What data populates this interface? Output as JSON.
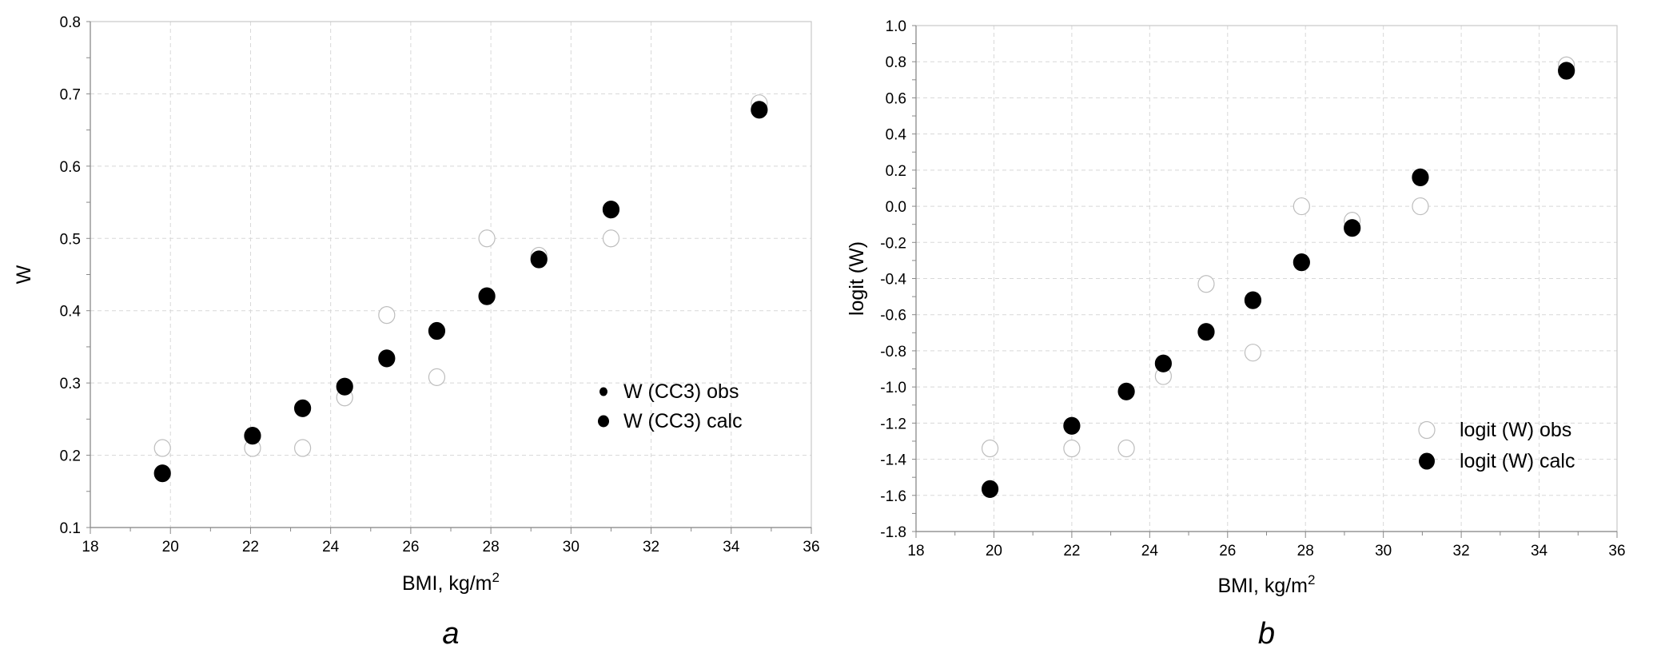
{
  "chart_data": [
    {
      "type": "scatter",
      "panel_label": "a",
      "xlabel": "BMI, kg/m",
      "xlabel_sup": "2",
      "ylabel": "W",
      "xlim": [
        18,
        36
      ],
      "ylim": [
        0.1,
        0.8
      ],
      "xticks": [
        "18",
        "20",
        "22",
        "24",
        "26",
        "28",
        "30",
        "32",
        "34",
        "36"
      ],
      "yticks": [
        "0.1",
        "0.2",
        "0.3",
        "0.4",
        "0.5",
        "0.6",
        "0.7",
        "0.8"
      ],
      "grid": true,
      "legend_position": "right-middle",
      "series": [
        {
          "name": "W (CC3) obs",
          "marker": "open-circle",
          "x": [
            19.8,
            22.05,
            23.3,
            24.35,
            25.4,
            26.65,
            27.9,
            29.2,
            31.0,
            34.7
          ],
          "y": [
            0.21,
            0.21,
            0.21,
            0.28,
            0.394,
            0.308,
            0.5,
            0.476,
            0.5,
            0.687
          ]
        },
        {
          "name": "W (CC3) calc",
          "marker": "filled-circle",
          "x": [
            19.8,
            22.05,
            23.3,
            24.35,
            25.4,
            26.65,
            27.9,
            29.2,
            31.0,
            34.7
          ],
          "y": [
            0.175,
            0.227,
            0.265,
            0.295,
            0.334,
            0.372,
            0.42,
            0.471,
            0.54,
            0.678
          ]
        }
      ]
    },
    {
      "type": "scatter",
      "panel_label": "b",
      "xlabel": "BMI, kg/m",
      "xlabel_sup": "2",
      "ylabel": "logit (W)",
      "xlim": [
        18,
        36
      ],
      "ylim": [
        -1.8,
        1.0
      ],
      "xticks": [
        "18",
        "20",
        "22",
        "24",
        "26",
        "28",
        "30",
        "32",
        "34",
        "36"
      ],
      "yticks": [
        "-1.8",
        "-1.6",
        "-1.4",
        "-1.2",
        "-1.0",
        "-0.8",
        "-0.6",
        "-0.4",
        "-0.2",
        "0.0",
        "0.2",
        "0.4",
        "0.6",
        "0.8",
        "1.0"
      ],
      "grid": true,
      "legend_position": "bottom-right",
      "series": [
        {
          "name": "logit (W) obs",
          "marker": "open-circle",
          "x": [
            19.9,
            22.0,
            23.4,
            24.35,
            25.45,
            26.65,
            27.9,
            29.2,
            30.95,
            34.7
          ],
          "y": [
            -1.34,
            -1.34,
            -1.34,
            -0.94,
            -0.43,
            -0.81,
            0.0,
            -0.08,
            0.0,
            0.78
          ]
        },
        {
          "name": "logit (W) calc",
          "marker": "filled-circle",
          "x": [
            19.9,
            22.0,
            23.4,
            24.35,
            25.45,
            26.65,
            27.9,
            29.2,
            30.95,
            34.7
          ],
          "y": [
            -1.565,
            -1.215,
            -1.025,
            -0.87,
            -0.695,
            -0.52,
            -0.31,
            -0.12,
            0.16,
            0.75
          ]
        }
      ]
    }
  ]
}
